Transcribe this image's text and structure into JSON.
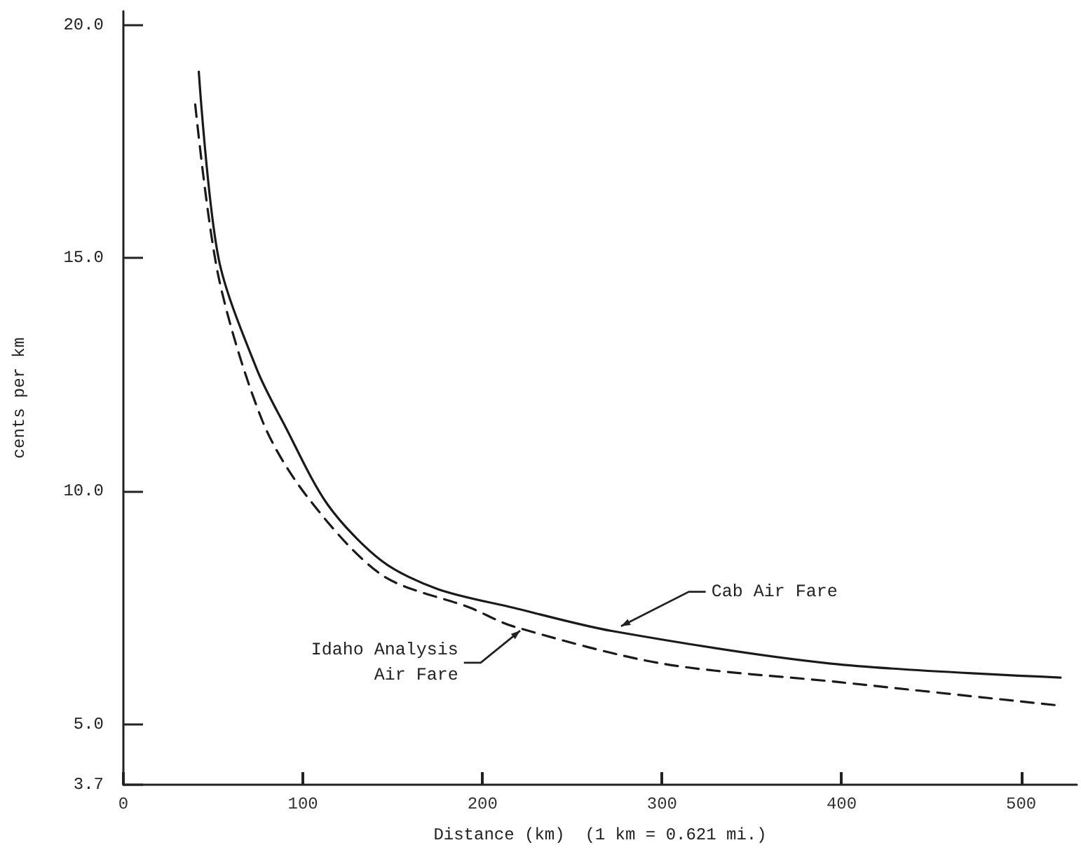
{
  "chart_data": {
    "type": "line",
    "xlabel": "Distance (km)  (1 km = 0.621 mi.)",
    "ylabel": "cents per km",
    "xlim": [
      0,
      531
    ],
    "xticks": [
      0,
      100,
      200,
      300,
      400,
      500
    ],
    "ylim": [
      3.7,
      20.3
    ],
    "yticks": [
      {
        "value": 3.7,
        "label": "3.7"
      },
      {
        "value": 5,
        "label": "5.0"
      },
      {
        "value": 10,
        "label": "10.0"
      },
      {
        "value": 15,
        "label": "15.0"
      },
      {
        "value": 20,
        "label": "20.0"
      }
    ],
    "grid": false,
    "marker": "none",
    "series": [
      {
        "color": "#1a1a1a",
        "line_style": "solid",
        "x": [
          42,
          53,
          74.5,
          90,
          114,
          144,
          175,
          217,
          272,
          394,
          522
        ],
        "values": [
          19.0,
          15.0,
          12.6,
          11.4,
          9.7,
          8.5,
          7.9,
          7.5,
          7.0,
          6.3,
          6.0
        ]
      },
      {
        "color": "#1a1a1a",
        "line_style": "dashed",
        "x": [
          40,
          53,
          77.5,
          102,
          144,
          193,
          217,
          300,
          399,
          521
        ],
        "values": [
          18.3,
          14.6,
          11.5,
          9.9,
          8.2,
          7.5,
          7.1,
          6.3,
          5.9,
          5.4
        ]
      }
    ],
    "annotations": [
      {
        "text": "Cab Air Fare",
        "x": 272,
        "y": 7.0
      },
      {
        "text": "Idaho Analysis\nAir Fare",
        "x": 224,
        "y": 7.1
      }
    ]
  }
}
